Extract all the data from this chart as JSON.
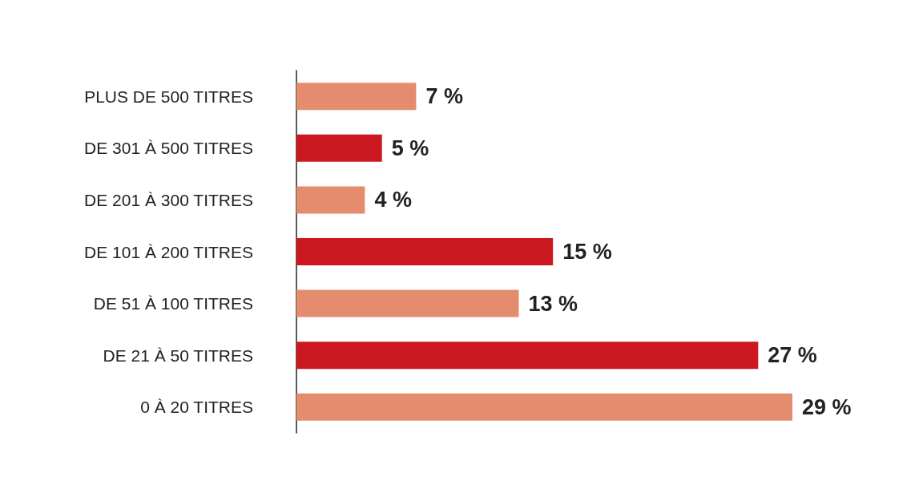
{
  "chart_data": {
    "type": "bar",
    "orientation": "horizontal",
    "categories": [
      "PLUS DE 500 TITRES",
      "DE 301 À 500 TITRES",
      "DE 201 À 300 TITRES",
      "DE 101 À 200 TITRES",
      "DE 51 À 100 TITRES",
      "DE 21 À 50 TITRES",
      "0 À 20 TITRES"
    ],
    "values": [
      7,
      5,
      4,
      15,
      13,
      27,
      29
    ],
    "colors": [
      "#e68c6e",
      "#cc1820",
      "#e68c6e",
      "#cc1820",
      "#e68c6e",
      "#cc1820",
      "#e68c6e"
    ],
    "value_labels": [
      "7 %",
      "5 %",
      "4 %",
      "15 %",
      "13 %",
      "27 %",
      "29 %"
    ]
  }
}
